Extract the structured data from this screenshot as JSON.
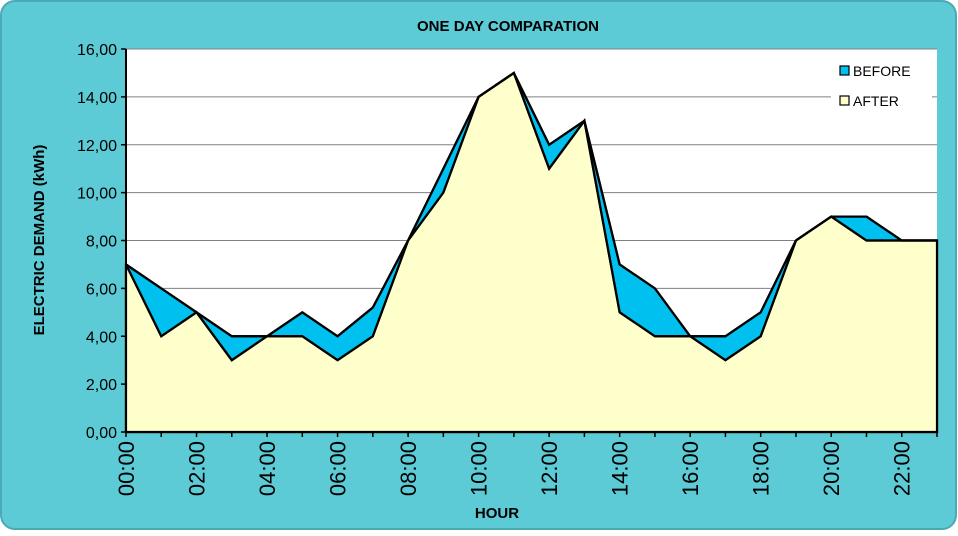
{
  "chart_data": {
    "type": "area",
    "title": "ONE DAY COMPARATION",
    "xlabel": "HOUR",
    "ylabel": "ELECTRIC DEMAND (kWh)",
    "x": [
      "00:00",
      "01:00",
      "02:00",
      "03:00",
      "04:00",
      "05:00",
      "06:00",
      "07:00",
      "08:00",
      "09:00",
      "10:00",
      "11:00",
      "12:00",
      "13:00",
      "14:00",
      "15:00",
      "16:00",
      "17:00",
      "18:00",
      "19:00",
      "20:00",
      "21:00",
      "22:00",
      "23:00"
    ],
    "x_tick_labels": [
      "00:00",
      "02:00",
      "04:00",
      "06:00",
      "08:00",
      "10:00",
      "12:00",
      "14:00",
      "16:00",
      "18:00",
      "20:00",
      "22:00"
    ],
    "y_tick_labels": [
      "0,00",
      "2,00",
      "4,00",
      "6,00",
      "8,00",
      "10,00",
      "12,00",
      "14,00",
      "16,00"
    ],
    "ylim": [
      0,
      16
    ],
    "grid": true,
    "legend_position": "top-right",
    "series": [
      {
        "name": "BEFORE",
        "color": "#00c0f0",
        "values": [
          7,
          6,
          5,
          4,
          4,
          5,
          4,
          5.2,
          8,
          11,
          14,
          15,
          12,
          13,
          7,
          6,
          4,
          4,
          5,
          8,
          9,
          9,
          8,
          8
        ]
      },
      {
        "name": "AFTER",
        "color": "#ffffcc",
        "values": [
          7,
          4,
          5,
          3,
          4,
          4,
          3,
          4,
          8,
          10,
          14,
          15,
          11,
          13,
          5,
          4,
          4,
          3,
          4,
          8,
          9,
          8,
          8,
          8
        ]
      }
    ]
  },
  "colors": {
    "background": "#5ccbd6",
    "plot_area": "#ffffff",
    "grid": "#808080",
    "line": "#000000"
  }
}
